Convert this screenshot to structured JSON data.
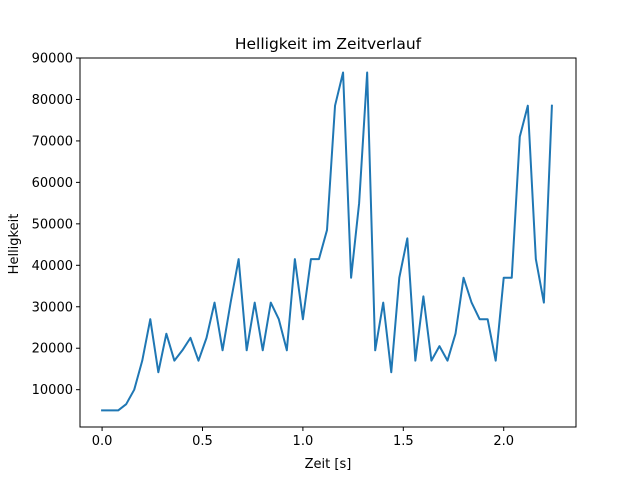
{
  "chart_data": {
    "type": "line",
    "title": "Helligkeit im Zeitverlauf",
    "xlabel": "Zeit [s]",
    "ylabel": "Helligkeit",
    "xlim": [
      -0.11,
      2.36
    ],
    "ylim": [
      1000,
      90000
    ],
    "xticks": [
      0.0,
      0.5,
      1.0,
      1.5,
      2.0
    ],
    "xtick_labels": [
      "0.0",
      "0.5",
      "1.0",
      "1.5",
      "2.0"
    ],
    "yticks": [
      10000,
      20000,
      30000,
      40000,
      50000,
      60000,
      70000,
      80000,
      90000
    ],
    "ytick_labels": [
      "10000",
      "20000",
      "30000",
      "40000",
      "50000",
      "60000",
      "70000",
      "80000",
      "90000"
    ],
    "grid": false,
    "series": [
      {
        "color": "#1f77b4",
        "x": [
          0.0,
          0.04,
          0.08,
          0.12,
          0.16,
          0.2,
          0.24,
          0.28,
          0.32,
          0.36,
          0.4,
          0.44,
          0.48,
          0.52,
          0.56,
          0.6,
          0.64,
          0.68,
          0.72,
          0.76,
          0.8,
          0.84,
          0.88,
          0.92,
          0.96,
          1.0,
          1.04,
          1.08,
          1.12,
          1.16,
          1.2,
          1.24,
          1.28,
          1.32,
          1.36,
          1.4,
          1.44,
          1.48,
          1.52,
          1.56,
          1.6,
          1.64,
          1.68,
          1.72,
          1.76,
          1.8,
          1.84,
          1.88,
          1.92,
          1.96,
          2.0,
          2.04,
          2.08,
          2.12,
          2.16,
          2.2,
          2.24
        ],
        "y": [
          5000,
          5000,
          5000,
          6500,
          10000,
          17000,
          27000,
          14200,
          23500,
          17000,
          19500,
          22500,
          17000,
          22500,
          31000,
          19500,
          31000,
          41500,
          19500,
          31000,
          19500,
          31000,
          27000,
          19500,
          41500,
          27000,
          41500,
          41500,
          48500,
          78500,
          86500,
          37000,
          55000,
          86500,
          19500,
          31000,
          14200,
          37000,
          46500,
          17000,
          32500,
          17000,
          20500,
          17000,
          23500,
          37000,
          31000,
          27000,
          27000,
          17000,
          37000,
          37000,
          71000,
          78500,
          41500,
          31000,
          78500
        ]
      }
    ]
  }
}
